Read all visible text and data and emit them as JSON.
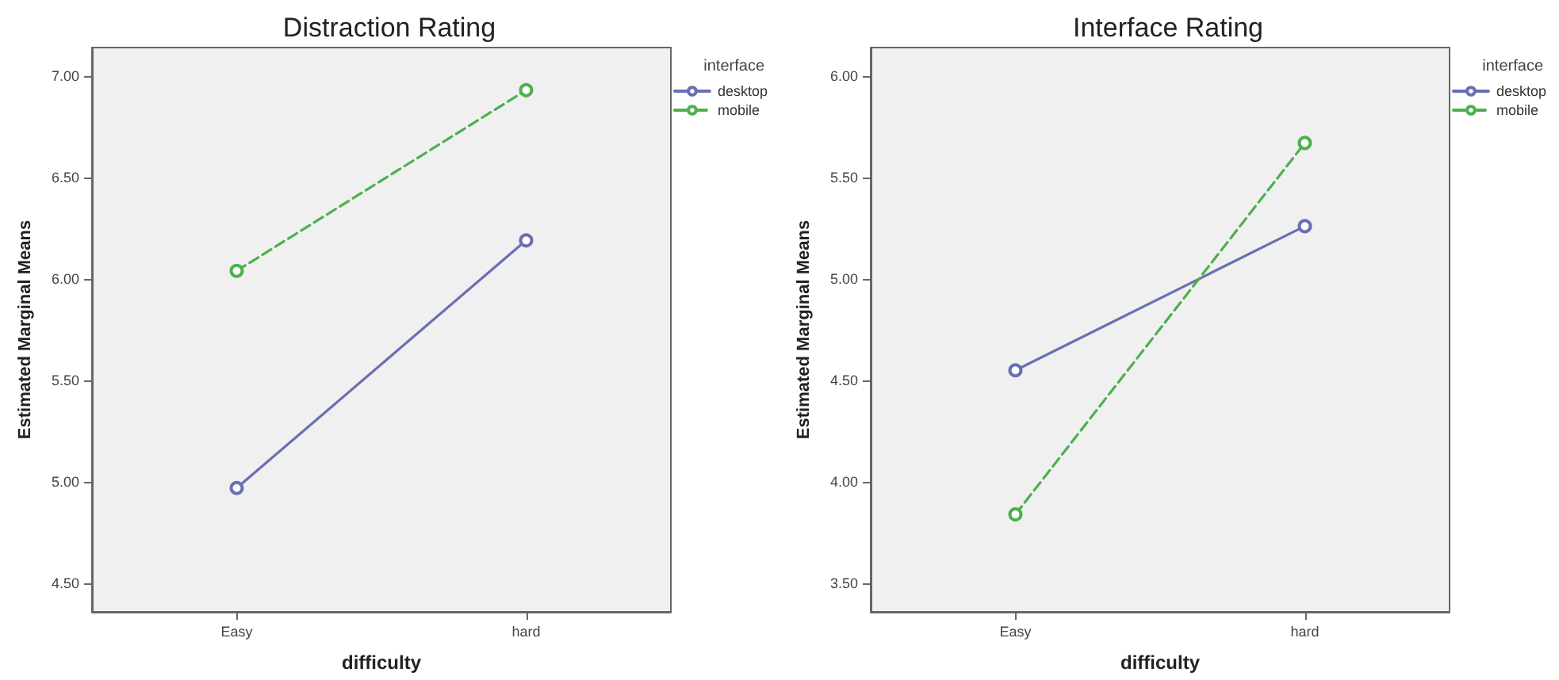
{
  "chart_data": [
    {
      "type": "line",
      "title": "Distraction Rating",
      "xlabel": "difficulty",
      "ylabel": "Estimated Marginal Means",
      "legend_title": "interface",
      "categories": [
        "Easy",
        "hard"
      ],
      "series": [
        {
          "name": "desktop",
          "color": "#6a6fb3",
          "line_style": "solid",
          "values": [
            4.97,
            6.19
          ]
        },
        {
          "name": "mobile",
          "color": "#4db04d",
          "line_style": "dashed",
          "values": [
            6.04,
            6.93
          ]
        }
      ],
      "ylim": [
        4.36,
        7.14
      ],
      "yticks": [
        {
          "value": 4.5,
          "label": "4.50"
        },
        {
          "value": 5,
          "label": "5.00"
        },
        {
          "value": 5.5,
          "label": "5.50"
        },
        {
          "value": 6,
          "label": "6.00"
        },
        {
          "value": 6.5,
          "label": "6.50"
        },
        {
          "value": 7,
          "label": "7.00"
        }
      ],
      "grid": false,
      "legend": "top right",
      "marker": "circle"
    },
    {
      "type": "line",
      "title": "Interface Rating",
      "xlabel": "difficulty",
      "ylabel": "Estimated Marginal Means",
      "legend_title": "interface",
      "categories": [
        "Easy",
        "hard"
      ],
      "series": [
        {
          "name": "desktop",
          "color": "#6a6fb3",
          "line_style": "solid",
          "values": [
            4.55,
            5.26
          ]
        },
        {
          "name": "mobile",
          "color": "#4db04d",
          "line_style": "dashed",
          "values": [
            3.84,
            5.67
          ]
        }
      ],
      "ylim": [
        3.36,
        6.14
      ],
      "yticks": [
        {
          "value": 3.5,
          "label": "3.50"
        },
        {
          "value": 4,
          "label": "4.00"
        },
        {
          "value": 4.5,
          "label": "4.50"
        },
        {
          "value": 5,
          "label": "5.00"
        },
        {
          "value": 5.5,
          "label": "5.50"
        },
        {
          "value": 6,
          "label": "6.00"
        }
      ],
      "grid": false,
      "legend": "top right",
      "marker": "circle"
    }
  ]
}
